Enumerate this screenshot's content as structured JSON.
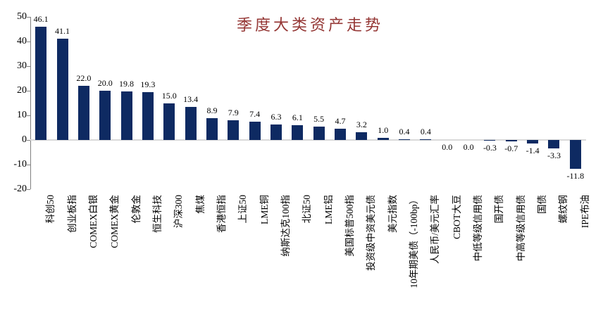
{
  "chart_data": {
    "type": "bar",
    "title": "季度大类资产走势",
    "categories": [
      "科创50",
      "创业板指",
      "COMEX白银",
      "COMEX黄金",
      "伦敦金",
      "恒生科技",
      "沪深300",
      "焦煤",
      "香港恒指",
      "上证50",
      "LME铜",
      "纳斯达克100指",
      "北证50",
      "LME铝",
      "美国标普500指",
      "投资级中资美元债",
      "美元指数",
      "10年期美债（-100bp）",
      "人民币/美元汇率",
      "CBOT大豆",
      "中低等级信用债",
      "国开债",
      "中高等级信用债",
      "国债",
      "螺纹钢",
      "IPE布油"
    ],
    "values": [
      46.1,
      41.1,
      22.0,
      20.0,
      19.8,
      19.3,
      15.0,
      13.4,
      8.9,
      7.9,
      7.4,
      6.3,
      6.1,
      5.5,
      4.7,
      3.2,
      1.0,
      0.4,
      0.4,
      0.0,
      0.0,
      -0.3,
      -0.7,
      -1.4,
      -3.3,
      -11.8
    ],
    "value_labels": [
      "46.1",
      "41.1",
      "22.0",
      "20.0",
      "19.8",
      "19.3",
      "15.0",
      "13.4",
      "8.9",
      "7.9",
      "7.4",
      "6.3",
      "6.1",
      "5.5",
      "4.7",
      "3.2",
      "1.0",
      "0.4",
      "0.4",
      "0.0",
      "0.0",
      "-0.3",
      "-0.7",
      "-1.4",
      "-3.3",
      "-11.8"
    ],
    "ylim": [
      -20,
      50
    ],
    "yticks": [
      50,
      40,
      30,
      20,
      10,
      0,
      -10,
      -20
    ],
    "xlabel": "",
    "ylabel": "",
    "legend_position": "none",
    "grid": "zero-line-only",
    "bar_color": "#0e2a62",
    "title_color": "#943634",
    "zero_line_color": "#d9d9d9",
    "axis_color": "#808080",
    "text_color": "#000000"
  }
}
